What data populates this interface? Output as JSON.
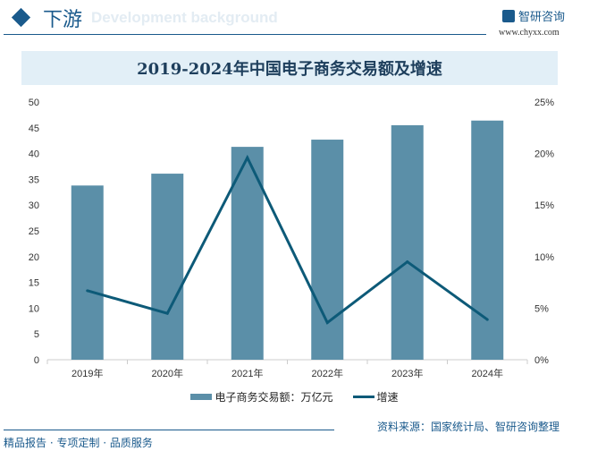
{
  "header": {
    "section_title": "下游",
    "section_subtitle": "Development background",
    "logo_text": "智研咨询",
    "logo_url": "www.chyxx.com"
  },
  "chart_data": {
    "type": "bar+line",
    "title": "2019-2024年中国电子商务交易额及增速",
    "categories": [
      "2019年",
      "2020年",
      "2021年",
      "2022年",
      "2023年",
      "2024年"
    ],
    "series": [
      {
        "name": "电子商务交易额：万亿元",
        "type": "bar",
        "axis": "left",
        "color": "#5b8fa8",
        "values": [
          33.8,
          36.1,
          41.3,
          42.7,
          45.5,
          46.4
        ]
      },
      {
        "name": "增速",
        "type": "line",
        "axis": "right",
        "color": "#0d5a78",
        "values": [
          6.7,
          4.5,
          19.6,
          3.6,
          9.5,
          3.9
        ]
      }
    ],
    "ylim": [
      0,
      50
    ],
    "yticks": [
      "0",
      "5",
      "10",
      "15",
      "20",
      "25",
      "30",
      "35",
      "40",
      "45",
      "50"
    ],
    "y2lim": [
      0,
      25
    ],
    "y2ticks": [
      "0%",
      "5%",
      "10%",
      "15%",
      "20%",
      "25%"
    ],
    "grid": false,
    "legend": "bottom"
  },
  "footer": {
    "source": "资料来源：国家统计局、智研咨询整理",
    "tagline": "精品报告 · 专项定制 · 品质服务"
  }
}
